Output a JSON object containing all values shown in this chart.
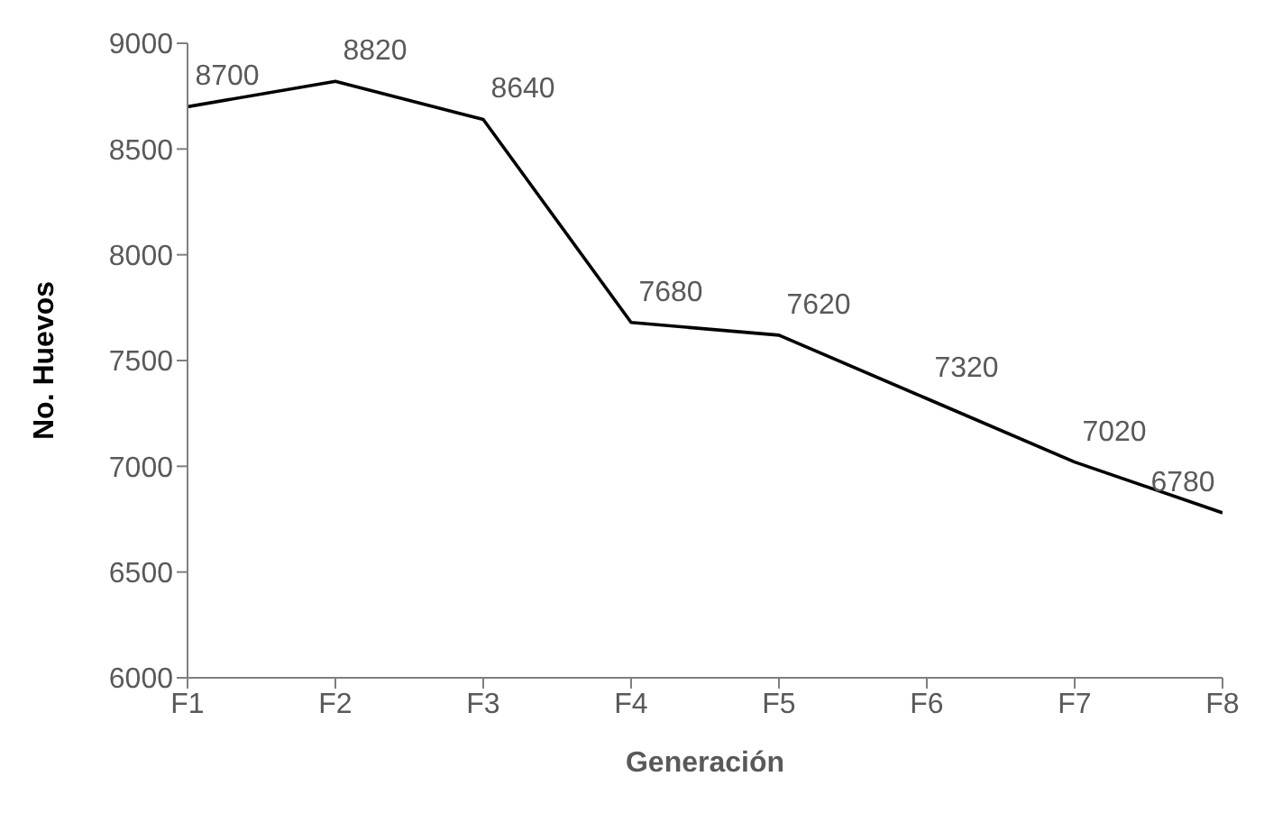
{
  "chart_data": {
    "type": "line",
    "xlabel": "Generación",
    "ylabel": "No. Huevos",
    "categories": [
      "F1",
      "F2",
      "F3",
      "F4",
      "F5",
      "F6",
      "F7",
      "F8"
    ],
    "series": [
      {
        "color": "#000000",
        "values": [
          8700,
          8820,
          8640,
          7680,
          7620,
          7320,
          7020,
          6780
        ]
      }
    ],
    "ylim": [
      6000,
      9000
    ],
    "yticks": [
      6000,
      6500,
      7000,
      7500,
      8000,
      8500,
      9000
    ],
    "data_labels": true,
    "grid": false,
    "legend": false,
    "marker": "none",
    "line_style": "solid"
  }
}
